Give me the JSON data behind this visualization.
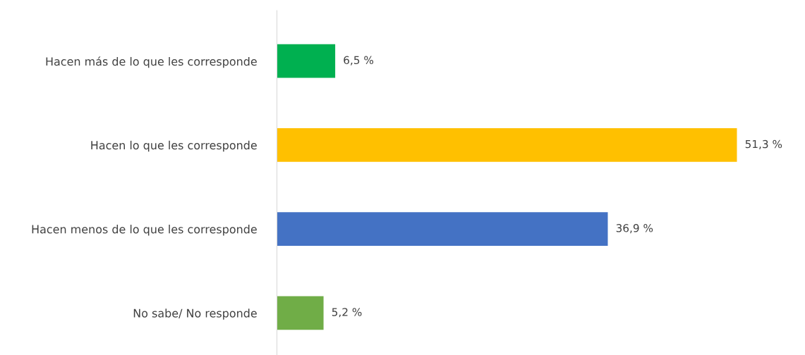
{
  "chart_data": {
    "type": "bar",
    "orientation": "horizontal",
    "categories": [
      "Hacen más de lo que les corresponde",
      "Hacen lo que les corresponde",
      "Hacen menos de lo que les corresponde",
      "No sabe/ No responde"
    ],
    "values": [
      6.5,
      51.3,
      36.9,
      5.2
    ],
    "colors": [
      "#00b050",
      "#ffc000",
      "#4472c4",
      "#70ad47"
    ],
    "value_labels": [
      "6,5 %",
      "51,3 %",
      "36,9 %",
      "5,2 %"
    ],
    "grid": false,
    "legend": false
  }
}
